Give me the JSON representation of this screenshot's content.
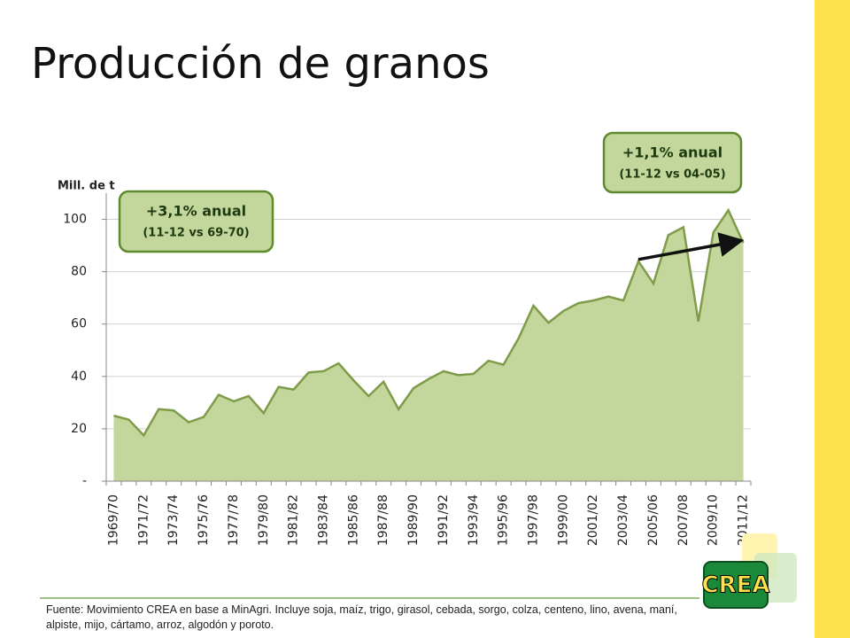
{
  "title": "Producción de granos",
  "logo": "CREA",
  "source": "Fuente: Movimiento CREA en base a MinAgri. Incluye soja, maíz, trigo, girasol, cebada, sorgo, colza, centeno, lino, avena, maní, alpiste, mijo, cártamo, arroz, algodón y poroto.",
  "chart_data": {
    "type": "area",
    "y_label": "Mill. de t",
    "categories": [
      "1969/70",
      null,
      "1971/72",
      null,
      "1973/74",
      null,
      "1975/76",
      null,
      "1977/78",
      null,
      "1979/80",
      null,
      "1981/82",
      null,
      "1983/84",
      null,
      "1985/86",
      null,
      "1987/88",
      null,
      "1989/90",
      null,
      "1991/92",
      null,
      "1993/94",
      null,
      "1995/96",
      null,
      "1997/98",
      null,
      "1999/00",
      null,
      "2001/02",
      null,
      "2003/04",
      null,
      "2005/06",
      null,
      "2007/08",
      null,
      "2009/10",
      null,
      "2011/12"
    ],
    "values": [
      25,
      23.5,
      17.5,
      27.5,
      27,
      22.5,
      24.5,
      33,
      30.5,
      32.5,
      26,
      36,
      35,
      41.5,
      42,
      45,
      38.5,
      32.5,
      38,
      27.5,
      35.5,
      39,
      42,
      40.5,
      41,
      46,
      44.5,
      54.5,
      67,
      60.5,
      65,
      68,
      69,
      70.5,
      69,
      84,
      75.5,
      94,
      97,
      61,
      95,
      103.5,
      91
    ],
    "color": "#c3d69b",
    "line_color": "#7f9c4a",
    "ylim": [
      0,
      110
    ],
    "yticks": [
      {
        "value": 0,
        "label": "-"
      },
      20,
      40,
      60,
      80,
      100
    ],
    "grid": true,
    "annotations": [
      {
        "title": "+3,1% anual",
        "subtitle": "(11-12 vs 69-70)"
      },
      {
        "title": "+1,1% anual",
        "subtitle": "(11-12 vs 04-05)"
      }
    ]
  }
}
